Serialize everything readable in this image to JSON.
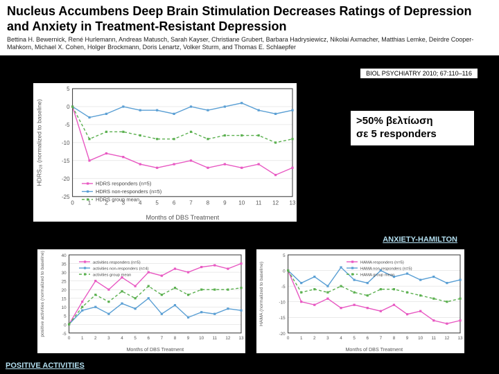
{
  "header": {
    "title": "Nucleus Accumbens Deep Brain Stimulation Decreases Ratings of Depression and Anxiety in Treatment-Resistant Depression",
    "authors": "Bettina H. Bewernick, René Hurlemann, Andreas Matusch, Sarah Kayser, Christiane Grubert, Barbara Hadrysiewicz, Nikolai Axmacher, Matthias Lemke, Deirdre Cooper-Mahkorn, Michael X. Cohen, Holger Brockmann, Doris Lenartz, Volker Sturm, and Thomas E. Schlaepfer",
    "journal": "BIOL PSYCHIATRY 2010; 67:110–116"
  },
  "annotation": {
    "line1": ">50% βελτίωση",
    "line2": "σε 5 responders"
  },
  "labels": {
    "anxiety": "ANXIETY-HAMILTON",
    "positive": "POSITIVE ACTIVITIES"
  },
  "colors": {
    "bg": "#000000",
    "panel": "#ffffff",
    "responders": "#e858c2",
    "nonresponders": "#5a9fd4",
    "mean": "#5bb04f",
    "axis": "#333333",
    "grid": "#d5d5d5",
    "tick_text": "#555555",
    "legend_text": "#444444"
  },
  "chart1": {
    "type": "line",
    "xlabel": "Months of DBS Treatment",
    "ylabel": "HDRS₂₈ (normalized to baseline)",
    "ylim": [
      -25,
      5
    ],
    "ytick_step": 5,
    "xlim": [
      0,
      13
    ],
    "xtick_step": 1,
    "legend": [
      "HDRS responders (n=5)",
      "HDRS non-responders (n=5)",
      "HDRS group mean"
    ],
    "series": {
      "responders": [
        0,
        -15,
        -13,
        -14,
        -16,
        -17,
        -16,
        -15,
        -17,
        -16,
        -17,
        -16,
        -19,
        -17
      ],
      "nonresponders": [
        0,
        -3,
        -2,
        0,
        -1,
        -1,
        -2,
        0,
        -1,
        0,
        1,
        -1,
        -2,
        -1
      ],
      "mean": [
        0,
        -9,
        -7,
        -7,
        -8,
        -9,
        -9,
        -7,
        -9,
        -8,
        -8,
        -8,
        -10,
        -9
      ]
    }
  },
  "chart2": {
    "type": "line",
    "xlabel": "Months of DBS Treatment",
    "ylabel": "positive activities (normalized to baseline)",
    "ylim": [
      -5,
      40
    ],
    "ytick_step": 5,
    "xlim": [
      0,
      13
    ],
    "xtick_step": 1,
    "legend": [
      "activities responders (n=5)",
      "activities non-responders (n=4)",
      "activities group mean"
    ],
    "series": {
      "responders": [
        0,
        13,
        25,
        20,
        27,
        22,
        30,
        28,
        32,
        30,
        33,
        34,
        32,
        35
      ],
      "nonresponders": [
        0,
        8,
        10,
        6,
        12,
        9,
        15,
        6,
        11,
        4,
        7,
        6,
        9,
        8
      ],
      "mean": [
        0,
        10,
        17,
        13,
        19,
        15,
        22,
        17,
        21,
        17,
        20,
        20,
        20,
        21
      ]
    }
  },
  "chart3": {
    "type": "line",
    "xlabel": "Months of DBS Treatment",
    "ylabel": "HAMA (normalized to baseline)",
    "ylim": [
      -20,
      5
    ],
    "ytick_step": 5,
    "xlim": [
      0,
      13
    ],
    "xtick_step": 1,
    "legend": [
      "HAMA responders (n=5)",
      "HAMA non-responders (n=5)",
      "HAMA group mean"
    ],
    "series": {
      "responders": [
        0,
        -10,
        -11,
        -9,
        -12,
        -11,
        -12,
        -13,
        -11,
        -14,
        -13,
        -16,
        -17,
        -16
      ],
      "nonresponders": [
        0,
        -4,
        -2,
        -5,
        1,
        -3,
        -4,
        0,
        -2,
        -1,
        -3,
        -2,
        -4,
        -3
      ],
      "mean": [
        0,
        -7,
        -6,
        -7,
        -5,
        -7,
        -8,
        -6,
        -6,
        -7,
        -8,
        -9,
        -10,
        -9
      ]
    }
  }
}
